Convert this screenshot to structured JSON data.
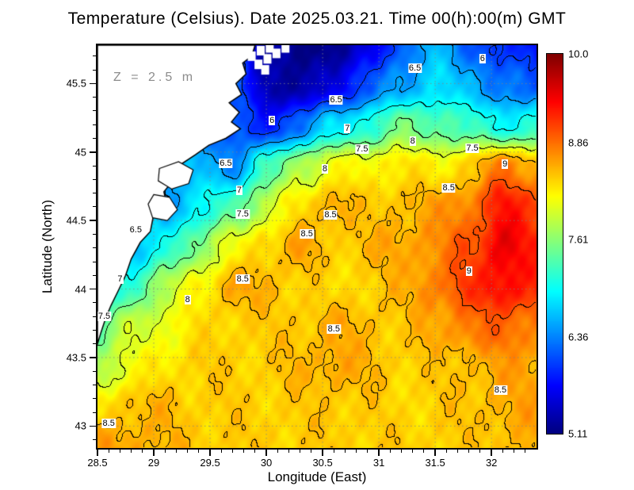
{
  "title": "Temperature (Celsius). Date 2025.03.21. Time 00(h):00(m) GMT",
  "annotation": "Z = 2.5 m",
  "axes": {
    "x_label": "Longitude (East)",
    "y_label": "Latitude (North)",
    "x_ticks": [
      28.5,
      29,
      29.5,
      30,
      30.5,
      31,
      31.5,
      32
    ],
    "x_tick_labels": [
      "28.5",
      "29",
      "29.5",
      "30",
      "30.5",
      "31",
      "31.5",
      "32"
    ],
    "y_ticks": [
      43,
      43.5,
      44,
      44.5,
      45,
      45.5
    ],
    "y_tick_labels": [
      "43",
      "43.5",
      "44",
      "44.5",
      "45",
      "45.5"
    ]
  },
  "colorbar": {
    "min": 5.11,
    "max": 10.0,
    "tick_values": [
      10.0,
      8.86,
      7.61,
      6.36,
      5.11
    ],
    "tick_labels": [
      "10.0",
      "8.86",
      "7.61",
      "6.36",
      "5.11"
    ],
    "colormap": "jet",
    "top_color": "#800000",
    "bottom_color": "#000080"
  },
  "chart_data": {
    "type": "heatmap",
    "title": "Temperature (Celsius). Date 2025.03.21. Time 00(h):00(m) GMT",
    "xlabel": "Longitude (East)",
    "ylabel": "Latitude (North)",
    "units": "Celsius",
    "depth_annotation": "Z = 2.5 m",
    "x_range": [
      28.5,
      32.4
    ],
    "y_range": [
      42.84,
      45.78
    ],
    "value_range": [
      5.11,
      10.0
    ],
    "contour_levels": [
      6,
      6.5,
      7,
      7.5,
      8,
      8.5,
      9
    ],
    "grid": {
      "lons": [
        28.5,
        28.8,
        29.1,
        29.4,
        29.7,
        30.0,
        30.3,
        30.6,
        30.9,
        31.2,
        31.5,
        31.8,
        32.1,
        32.4
      ],
      "lats": [
        45.78,
        45.49,
        45.19,
        44.9,
        44.6,
        44.31,
        44.02,
        43.72,
        43.43,
        43.13,
        42.84
      ],
      "values": [
        [
          6.5,
          6.5,
          6.4,
          6.4,
          6.3,
          5.3,
          5.1,
          5.2,
          5.5,
          6.2,
          6.6,
          6.2,
          5.9,
          5.8
        ],
        [
          6.4,
          6.4,
          6.3,
          6.2,
          6.2,
          5.4,
          5.2,
          5.6,
          6.1,
          6.5,
          6.8,
          6.6,
          6.3,
          6.1
        ],
        [
          6.3,
          6.3,
          6.3,
          6.3,
          6.1,
          5.8,
          6.3,
          6.8,
          7.1,
          7.5,
          7.4,
          7.2,
          7.0,
          7.1
        ],
        [
          6.6,
          6.6,
          6.6,
          6.6,
          6.4,
          7.2,
          7.8,
          8.1,
          8.2,
          8.3,
          8.2,
          8.4,
          8.8,
          8.6
        ],
        [
          6.7,
          6.6,
          6.5,
          6.9,
          7.3,
          7.9,
          8.3,
          8.6,
          8.4,
          8.5,
          8.6,
          8.8,
          9.3,
          9.1
        ],
        [
          6.5,
          6.6,
          7.0,
          7.6,
          8.1,
          8.4,
          8.6,
          8.4,
          8.5,
          8.6,
          8.7,
          9.0,
          9.5,
          9.2
        ],
        [
          6.8,
          7.2,
          7.8,
          8.2,
          8.6,
          8.5,
          8.4,
          8.3,
          8.4,
          8.5,
          8.8,
          9.1,
          9.4,
          9.2
        ],
        [
          7.4,
          7.9,
          8.1,
          8.3,
          8.4,
          8.4,
          8.45,
          8.55,
          8.5,
          8.4,
          8.6,
          8.8,
          8.9,
          8.8
        ],
        [
          7.8,
          8.1,
          8.3,
          8.4,
          8.4,
          8.4,
          8.5,
          8.6,
          8.5,
          8.4,
          8.4,
          8.5,
          8.6,
          8.6
        ],
        [
          8.3,
          8.5,
          8.5,
          8.4,
          8.4,
          8.4,
          8.4,
          8.45,
          8.4,
          8.35,
          8.4,
          8.45,
          8.55,
          8.6
        ],
        [
          8.6,
          8.6,
          8.5,
          8.45,
          8.4,
          8.4,
          8.4,
          8.4,
          8.4,
          8.4,
          8.4,
          8.4,
          8.5,
          8.55
        ]
      ]
    },
    "contour_labels": [
      {
        "text": "6.5",
        "lon": 31.32,
        "lat": 45.61
      },
      {
        "text": "6",
        "lon": 31.92,
        "lat": 45.68
      },
      {
        "text": "6.5",
        "lon": 30.62,
        "lat": 45.38
      },
      {
        "text": "6",
        "lon": 30.05,
        "lat": 45.23
      },
      {
        "text": "7",
        "lon": 30.72,
        "lat": 45.17
      },
      {
        "text": "8",
        "lon": 31.3,
        "lat": 45.08
      },
      {
        "text": "7.5",
        "lon": 30.85,
        "lat": 45.02
      },
      {
        "text": "7.5",
        "lon": 31.83,
        "lat": 45.03
      },
      {
        "text": "9",
        "lon": 32.12,
        "lat": 44.91
      },
      {
        "text": "6.5",
        "lon": 29.64,
        "lat": 44.92
      },
      {
        "text": "8",
        "lon": 30.52,
        "lat": 44.88
      },
      {
        "text": "7",
        "lon": 29.76,
        "lat": 44.72
      },
      {
        "text": "8.5",
        "lon": 31.62,
        "lat": 44.74
      },
      {
        "text": "7.5",
        "lon": 29.79,
        "lat": 44.55
      },
      {
        "text": "8.5",
        "lon": 30.57,
        "lat": 44.54
      },
      {
        "text": "8.5",
        "lon": 30.36,
        "lat": 44.4
      },
      {
        "text": "6.5",
        "lon": 28.84,
        "lat": 44.43
      },
      {
        "text": "7",
        "lon": 28.7,
        "lat": 44.07
      },
      {
        "text": "8.5",
        "lon": 29.79,
        "lat": 44.07
      },
      {
        "text": "9",
        "lon": 31.8,
        "lat": 44.13
      },
      {
        "text": "8",
        "lon": 29.3,
        "lat": 43.92
      },
      {
        "text": "7.5",
        "lon": 28.56,
        "lat": 43.8
      },
      {
        "text": "8.5",
        "lon": 30.6,
        "lat": 43.71
      },
      {
        "text": "8.5",
        "lon": 32.08,
        "lat": 43.26
      },
      {
        "text": "8.5",
        "lon": 28.6,
        "lat": 43.02
      }
    ],
    "land_polygon": [
      [
        28.5,
        45.78
      ],
      [
        29.9,
        45.78
      ],
      [
        29.87,
        45.7
      ],
      [
        29.79,
        45.65
      ],
      [
        29.82,
        45.57
      ],
      [
        29.73,
        45.5
      ],
      [
        29.78,
        45.42
      ],
      [
        29.67,
        45.36
      ],
      [
        29.76,
        45.29
      ],
      [
        29.69,
        45.22
      ],
      [
        29.77,
        45.17
      ],
      [
        29.64,
        45.1
      ],
      [
        29.49,
        45.05
      ],
      [
        29.37,
        44.98
      ],
      [
        29.24,
        44.91
      ],
      [
        29.17,
        44.79
      ],
      [
        29.09,
        44.71
      ],
      [
        29.12,
        44.6
      ],
      [
        29.0,
        44.55
      ],
      [
        28.97,
        44.42
      ],
      [
        28.88,
        44.34
      ],
      [
        28.8,
        44.22
      ],
      [
        28.75,
        44.1
      ],
      [
        28.68,
        43.98
      ],
      [
        28.62,
        43.88
      ],
      [
        28.57,
        43.78
      ],
      [
        28.53,
        43.68
      ],
      [
        28.5,
        43.6
      ]
    ],
    "lake_outlines": [
      [
        [
          29.05,
          44.88
        ],
        [
          29.22,
          44.93
        ],
        [
          29.35,
          44.87
        ],
        [
          29.31,
          44.77
        ],
        [
          29.16,
          44.73
        ],
        [
          29.04,
          44.79
        ]
      ],
      [
        [
          29.0,
          44.69
        ],
        [
          29.14,
          44.67
        ],
        [
          29.21,
          44.58
        ],
        [
          29.12,
          44.5
        ],
        [
          28.99,
          44.52
        ],
        [
          28.95,
          44.62
        ]
      ]
    ],
    "gap_squares": [
      [
        29.87,
        45.7
      ],
      [
        29.95,
        45.74
      ],
      [
        30.03,
        45.76
      ],
      [
        29.93,
        45.64
      ],
      [
        30.01,
        45.68
      ],
      [
        30.09,
        45.72
      ],
      [
        30.17,
        45.76
      ],
      [
        29.99,
        45.6
      ]
    ],
    "legend_position": "right",
    "grid_on": true
  }
}
